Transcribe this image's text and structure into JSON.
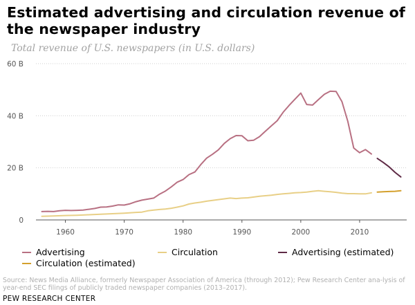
{
  "chart_data": {
    "type": "line",
    "title": "Estimated advertising and circulation revenue of the newspaper industry",
    "subtitle": "Total revenue of U.S. newspapers (in U.S. dollars)",
    "xlim": [
      1955,
      2018
    ],
    "ylim": [
      0,
      60
    ],
    "x_ticks": [
      1960,
      1970,
      1980,
      1990,
      2000,
      2010
    ],
    "y_ticks": [
      {
        "value": 0,
        "label": "0"
      },
      {
        "value": 20,
        "label": "20 B"
      },
      {
        "value": 40,
        "label": "40 B"
      },
      {
        "value": 60,
        "label": "60 B"
      }
    ],
    "grid": "horizontal dotted",
    "legend_position": "bottom",
    "series": [
      {
        "name": "Advertising",
        "color": "#b87082",
        "style": "solid",
        "points": [
          [
            1956,
            3.2
          ],
          [
            1957,
            3.3
          ],
          [
            1958,
            3.2
          ],
          [
            1959,
            3.5
          ],
          [
            1960,
            3.7
          ],
          [
            1961,
            3.6
          ],
          [
            1962,
            3.7
          ],
          [
            1963,
            3.8
          ],
          [
            1964,
            4.1
          ],
          [
            1965,
            4.4
          ],
          [
            1966,
            4.9
          ],
          [
            1967,
            5.0
          ],
          [
            1968,
            5.3
          ],
          [
            1969,
            5.8
          ],
          [
            1970,
            5.7
          ],
          [
            1971,
            6.2
          ],
          [
            1972,
            7.0
          ],
          [
            1973,
            7.6
          ],
          [
            1974,
            8.0
          ],
          [
            1975,
            8.4
          ],
          [
            1976,
            9.9
          ],
          [
            1977,
            11.1
          ],
          [
            1978,
            12.7
          ],
          [
            1979,
            14.5
          ],
          [
            1980,
            15.5
          ],
          [
            1981,
            17.4
          ],
          [
            1982,
            18.4
          ],
          [
            1983,
            21.2
          ],
          [
            1984,
            23.7
          ],
          [
            1985,
            25.2
          ],
          [
            1986,
            26.9
          ],
          [
            1987,
            29.4
          ],
          [
            1988,
            31.2
          ],
          [
            1989,
            32.4
          ],
          [
            1990,
            32.3
          ],
          [
            1991,
            30.4
          ],
          [
            1992,
            30.6
          ],
          [
            1993,
            32.0
          ],
          [
            1994,
            34.1
          ],
          [
            1995,
            36.1
          ],
          [
            1996,
            38.1
          ],
          [
            1997,
            41.3
          ],
          [
            1998,
            43.9
          ],
          [
            1999,
            46.3
          ],
          [
            2000,
            48.7
          ],
          [
            2001,
            44.3
          ],
          [
            2002,
            44.1
          ],
          [
            2003,
            46.2
          ],
          [
            2004,
            48.2
          ],
          [
            2005,
            49.4
          ],
          [
            2006,
            49.3
          ],
          [
            2007,
            45.4
          ],
          [
            2008,
            37.8
          ],
          [
            2009,
            27.6
          ],
          [
            2010,
            25.8
          ],
          [
            2011,
            27.0
          ],
          [
            2012,
            25.3
          ]
        ]
      },
      {
        "name": "Circulation",
        "color": "#e8cf86",
        "style": "solid",
        "points": [
          [
            1956,
            1.4
          ],
          [
            1958,
            1.5
          ],
          [
            1960,
            1.7
          ],
          [
            1962,
            1.8
          ],
          [
            1964,
            2.0
          ],
          [
            1966,
            2.2
          ],
          [
            1968,
            2.4
          ],
          [
            1970,
            2.6
          ],
          [
            1972,
            2.9
          ],
          [
            1973,
            3.0
          ],
          [
            1974,
            3.5
          ],
          [
            1975,
            3.8
          ],
          [
            1976,
            4.0
          ],
          [
            1977,
            4.2
          ],
          [
            1978,
            4.5
          ],
          [
            1979,
            4.9
          ],
          [
            1980,
            5.4
          ],
          [
            1981,
            6.1
          ],
          [
            1982,
            6.5
          ],
          [
            1983,
            6.8
          ],
          [
            1984,
            7.2
          ],
          [
            1985,
            7.5
          ],
          [
            1986,
            7.8
          ],
          [
            1987,
            8.1
          ],
          [
            1988,
            8.4
          ],
          [
            1989,
            8.2
          ],
          [
            1990,
            8.4
          ],
          [
            1991,
            8.5
          ],
          [
            1992,
            8.8
          ],
          [
            1993,
            9.1
          ],
          [
            1994,
            9.3
          ],
          [
            1995,
            9.5
          ],
          [
            1996,
            9.8
          ],
          [
            1997,
            10.0
          ],
          [
            1998,
            10.2
          ],
          [
            1999,
            10.4
          ],
          [
            2000,
            10.5
          ],
          [
            2001,
            10.7
          ],
          [
            2002,
            11.0
          ],
          [
            2003,
            11.2
          ],
          [
            2004,
            11.0
          ],
          [
            2005,
            10.8
          ],
          [
            2006,
            10.6
          ],
          [
            2007,
            10.3
          ],
          [
            2008,
            10.1
          ],
          [
            2009,
            10.1
          ],
          [
            2010,
            10.0
          ],
          [
            2011,
            10.0
          ],
          [
            2012,
            10.4
          ]
        ]
      },
      {
        "name": "Advertising (estimated)",
        "color": "#5e2a45",
        "style": "solid",
        "points": [
          [
            2013,
            23.6
          ],
          [
            2014,
            22.1
          ],
          [
            2015,
            20.4
          ],
          [
            2016,
            18.3
          ],
          [
            2017,
            16.5
          ]
        ]
      },
      {
        "name": "Circulation (estimated)",
        "color": "#d4a02c",
        "style": "solid",
        "points": [
          [
            2013,
            10.7
          ],
          [
            2014,
            10.8
          ],
          [
            2015,
            10.9
          ],
          [
            2016,
            11.0
          ],
          [
            2017,
            11.2
          ]
        ]
      }
    ]
  },
  "source_text": "Source: News Media Alliance, formerly Newspaper Association of America (through 2012); Pew Research Center ana-lysis of year-end SEC filings of publicly traded newspaper companies (2013–2017).",
  "brand": "PEW RESEARCH CENTER"
}
